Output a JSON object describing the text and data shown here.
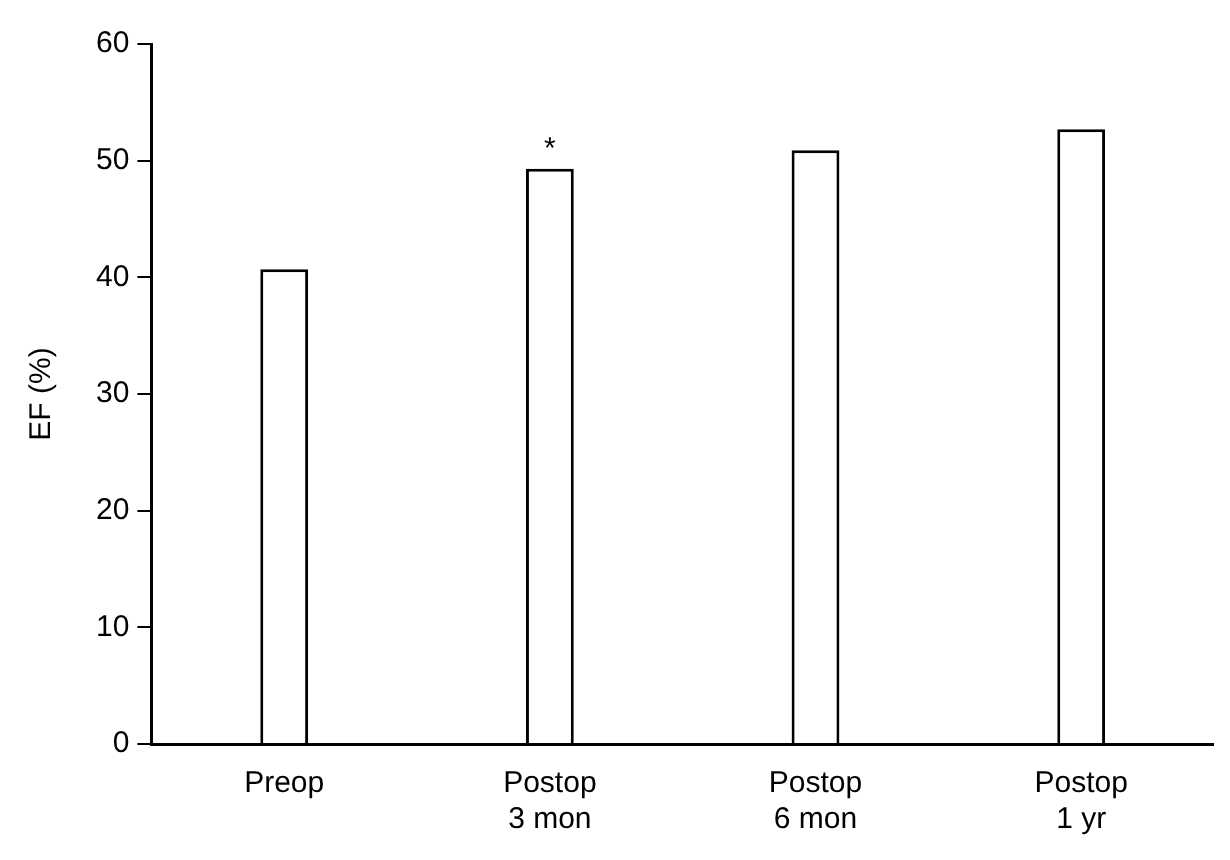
{
  "chart_data": {
    "type": "bar",
    "ylabel": "EF (%)",
    "categories": [
      "Preop",
      "Postop 3 mon",
      "Postop 6 mon",
      "Postop 1 yr"
    ],
    "values": [
      40.7,
      49.3,
      50.9,
      52.7
    ],
    "color": "#ffffff",
    "ylim": [
      0,
      60
    ],
    "yticks": [
      0,
      10,
      20,
      30,
      40,
      50,
      60
    ],
    "grid": false,
    "legend": false,
    "annotations": [
      {
        "text": "*",
        "x": "Postop 3 mon",
        "y": 49.3
      }
    ]
  }
}
